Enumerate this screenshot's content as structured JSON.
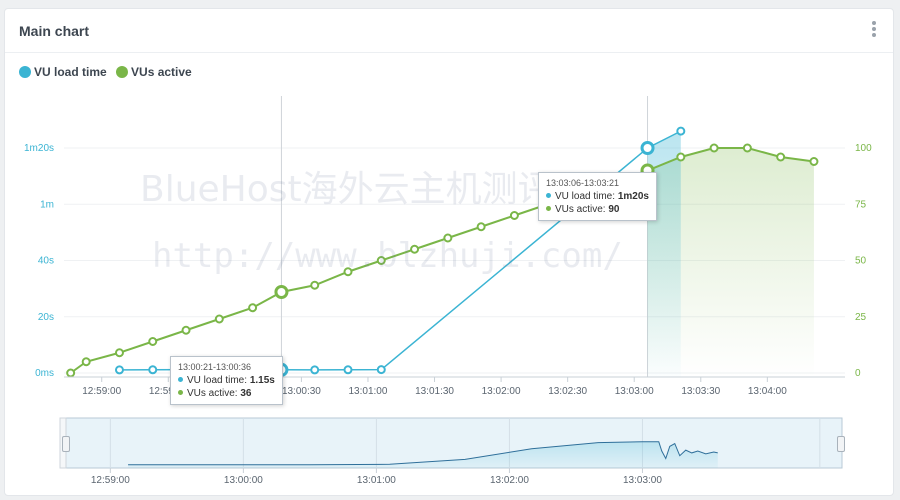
{
  "panel": {
    "title": "Main chart",
    "menu_icon": "kebab-menu-icon"
  },
  "colors": {
    "load_time": "#3bb4d3",
    "vus": "#7ab648",
    "grid": "#eef0f2"
  },
  "chart_data": {
    "type": "line",
    "x_ticks": [
      "12:59:00",
      "12:59:30",
      "13:00:00",
      "13:00:30",
      "13:01:00",
      "13:01:30",
      "13:02:00",
      "13:02:30",
      "13:03:00",
      "13:03:30",
      "13:04:00"
    ],
    "y_left_ticks": [
      "0ms",
      "20s",
      "40s",
      "1m",
      "1m20s"
    ],
    "y_right_ticks": [
      "0",
      "25",
      "50",
      "75",
      "100"
    ],
    "series": [
      {
        "name": "VU load time",
        "axis": "left",
        "unit": "s",
        "points": [
          [
            "12:59:08",
            1.1
          ],
          [
            "12:59:23",
            1.15
          ],
          [
            "12:59:38",
            1.2
          ],
          [
            "12:59:53",
            1.15
          ],
          [
            "13:00:08",
            1.1
          ],
          [
            "13:00:21",
            1.15
          ],
          [
            "13:00:36",
            1.1
          ],
          [
            "13:00:51",
            1.15
          ],
          [
            "13:01:06",
            1.2
          ],
          [
            "13:03:06",
            80
          ],
          [
            "13:03:21",
            86
          ]
        ]
      },
      {
        "name": "VUs active",
        "axis": "right",
        "points": [
          [
            "12:58:46",
            0
          ],
          [
            "12:58:53",
            5
          ],
          [
            "12:59:08",
            9
          ],
          [
            "12:59:23",
            14
          ],
          [
            "12:59:38",
            19
          ],
          [
            "12:59:53",
            24
          ],
          [
            "13:00:08",
            29
          ],
          [
            "13:00:21",
            36
          ],
          [
            "13:00:36",
            39
          ],
          [
            "13:00:51",
            45
          ],
          [
            "13:01:06",
            50
          ],
          [
            "13:01:21",
            55
          ],
          [
            "13:01:36",
            60
          ],
          [
            "13:01:51",
            65
          ],
          [
            "13:02:06",
            70
          ],
          [
            "13:02:21",
            75
          ],
          [
            "13:02:36",
            80
          ],
          [
            "13:02:51",
            85
          ],
          [
            "13:03:06",
            90
          ],
          [
            "13:03:21",
            96
          ],
          [
            "13:03:36",
            100
          ],
          [
            "13:03:51",
            100
          ],
          [
            "13:04:06",
            96
          ],
          [
            "13:04:21",
            94
          ]
        ]
      }
    ],
    "navigator_x_ticks": [
      "12:59:00",
      "13:00:00",
      "13:01:00",
      "13:02:00",
      "13:03:00"
    ]
  },
  "tooltips": [
    {
      "time": "13:00:21-13:00:36",
      "load_label": "VU load time: ",
      "load_value": "1.15s",
      "vus_label": "VUs active: ",
      "vus_value": "36"
    },
    {
      "time": "13:03:06-13:03:21",
      "load_label": "VU load time: ",
      "load_value": "1m20s",
      "vus_label": "VUs active: ",
      "vus_value": "90"
    }
  ],
  "watermark": {
    "line1": "BlueHost海外云主机测评",
    "line2": "http://www.blzhuji.com/"
  }
}
